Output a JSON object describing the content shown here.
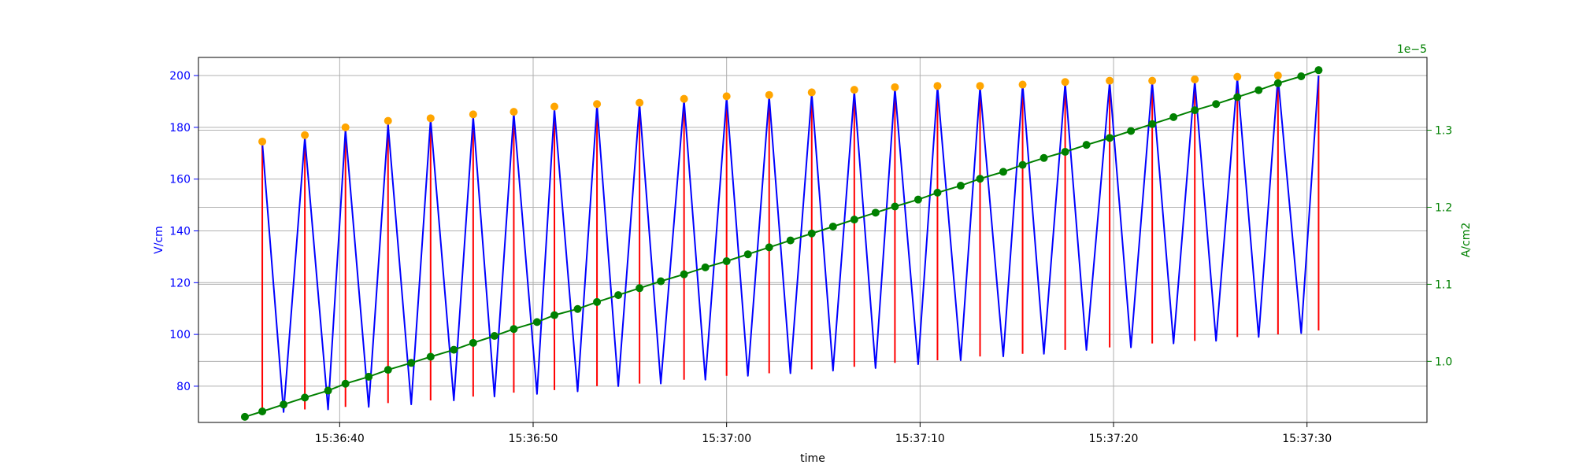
{
  "chart_data": {
    "type": "line",
    "xlabel": "time",
    "ylabel_left": "V/cm",
    "ylabel_right": "A/cm2",
    "right_offset_label": "1e−5",
    "x_ticks": [
      "15:36:40",
      "15:36:50",
      "15:37:00",
      "15:37:10",
      "15:37:20",
      "15:37:30"
    ],
    "x_tick_seconds": [
      40,
      50,
      60,
      70,
      80,
      90
    ],
    "x_start_label": "15:36:35.1",
    "xlim": [
      32.7,
      96.2
    ],
    "ylim_left": [
      66,
      207
    ],
    "yticks_left": [
      80,
      100,
      120,
      140,
      160,
      180,
      200
    ],
    "ylim_right": [
      0.9207,
      1.3945
    ],
    "yticks_right": [
      1.0,
      1.1,
      1.2,
      1.3
    ],
    "yticks_right_labels": [
      "1.0",
      "1.1",
      "1.2",
      "1.3"
    ],
    "grid": true,
    "colors": {
      "field": "#0000ff",
      "pulse": "#ff0000",
      "peak": "#ffa500",
      "current": "#008000",
      "right_axis": "#008000",
      "left_axis": "#0000ff"
    },
    "series": [
      {
        "kind": "triangle-field",
        "axis": "left",
        "color": "#0000ff",
        "x": [
          36.0,
          37.1,
          38.2,
          39.4,
          40.3,
          41.5,
          42.5,
          43.7,
          44.7,
          45.9,
          46.9,
          48.0,
          49.0,
          50.2,
          51.1,
          52.3,
          53.3,
          54.4,
          55.5,
          56.6,
          57.8,
          58.9,
          60.0,
          61.1,
          62.2,
          63.3,
          64.4,
          65.5,
          66.6,
          67.7,
          68.7,
          69.9,
          70.9,
          72.1,
          73.1,
          74.3,
          75.3,
          76.4,
          77.5,
          78.6,
          79.8,
          80.9,
          82.0,
          83.1,
          84.2,
          85.3,
          86.4,
          87.5,
          88.5,
          89.7,
          90.6
        ],
        "y": [
          174,
          70,
          176,
          71,
          179,
          72,
          181,
          73,
          183,
          74.5,
          184,
          76,
          185.5,
          77,
          187,
          78,
          188.5,
          80,
          189,
          81,
          190.5,
          82.5,
          191.5,
          84,
          192,
          85,
          193,
          86,
          194,
          87,
          195,
          88.5,
          195.5,
          90,
          195.5,
          91.5,
          196.5,
          92.5,
          197,
          94,
          197.5,
          95,
          197.5,
          96.5,
          198,
          97.5,
          199,
          99,
          199.5,
          100.5,
          200
        ]
      },
      {
        "kind": "pulse-stems",
        "axis": "left",
        "color": "#ff0000",
        "x": [
          36.0,
          38.2,
          40.3,
          42.5,
          44.7,
          46.9,
          49.0,
          51.1,
          53.3,
          55.5,
          57.8,
          60.0,
          62.2,
          64.4,
          66.6,
          68.7,
          70.9,
          73.1,
          75.3,
          77.5,
          79.8,
          82.0,
          84.2,
          86.4,
          88.5,
          90.6
        ],
        "low": [
          70,
          71,
          72,
          73.5,
          74.5,
          76,
          77.5,
          78.5,
          80,
          81,
          82.5,
          84,
          85,
          86.5,
          87.5,
          89,
          90,
          91.5,
          92.5,
          94,
          95,
          96.5,
          97.5,
          99,
          100,
          101.5
        ],
        "high": [
          174,
          176,
          179,
          181,
          183,
          184,
          185.5,
          187,
          188.5,
          189,
          190.5,
          191.5,
          192,
          193,
          194,
          195,
          195.5,
          195.5,
          196.5,
          197,
          197.5,
          197.5,
          198,
          199,
          199.5,
          200
        ]
      },
      {
        "kind": "peak-markers",
        "axis": "left",
        "color": "#ffa500",
        "x": [
          36.0,
          38.2,
          40.3,
          42.5,
          44.7,
          46.9,
          49.0,
          51.1,
          53.3,
          55.5,
          57.8,
          60.0,
          62.2,
          64.4,
          66.6,
          68.7,
          70.9,
          73.1,
          75.3,
          77.5,
          79.8,
          82.0,
          84.2,
          86.4,
          88.5
        ],
        "y": [
          174.5,
          177,
          180,
          182.5,
          183.5,
          185,
          186,
          188,
          189,
          189.5,
          191,
          192,
          192.5,
          193.5,
          194.5,
          195.5,
          196,
          196,
          196.5,
          197.5,
          198,
          198,
          198.5,
          199.5,
          200
        ]
      },
      {
        "kind": "current-density",
        "axis": "right",
        "color": "#008000",
        "x": [
          35.1,
          36.0,
          37.1,
          38.2,
          39.4,
          40.3,
          41.5,
          42.5,
          43.7,
          44.7,
          45.9,
          46.9,
          48.0,
          49.0,
          50.2,
          51.1,
          52.3,
          53.3,
          54.4,
          55.5,
          56.6,
          57.8,
          58.9,
          60.0,
          61.1,
          62.2,
          63.3,
          64.4,
          65.5,
          66.6,
          67.7,
          68.7,
          69.9,
          70.9,
          72.1,
          73.1,
          74.3,
          75.3,
          76.4,
          77.5,
          78.6,
          79.8,
          80.9,
          82.0,
          83.1,
          84.2,
          85.3,
          86.4,
          87.5,
          88.5,
          89.7,
          90.6
        ],
        "y": [
          0.928,
          0.935,
          0.944,
          0.953,
          0.962,
          0.971,
          0.98,
          0.989,
          0.998,
          1.006,
          1.015,
          1.024,
          1.033,
          1.042,
          1.051,
          1.06,
          1.068,
          1.077,
          1.086,
          1.095,
          1.104,
          1.113,
          1.122,
          1.13,
          1.139,
          1.148,
          1.157,
          1.166,
          1.175,
          1.184,
          1.193,
          1.201,
          1.21,
          1.219,
          1.228,
          1.237,
          1.246,
          1.255,
          1.264,
          1.272,
          1.281,
          1.29,
          1.299,
          1.308,
          1.317,
          1.326,
          1.334,
          1.343,
          1.352,
          1.361,
          1.37,
          1.378
        ]
      }
    ]
  }
}
